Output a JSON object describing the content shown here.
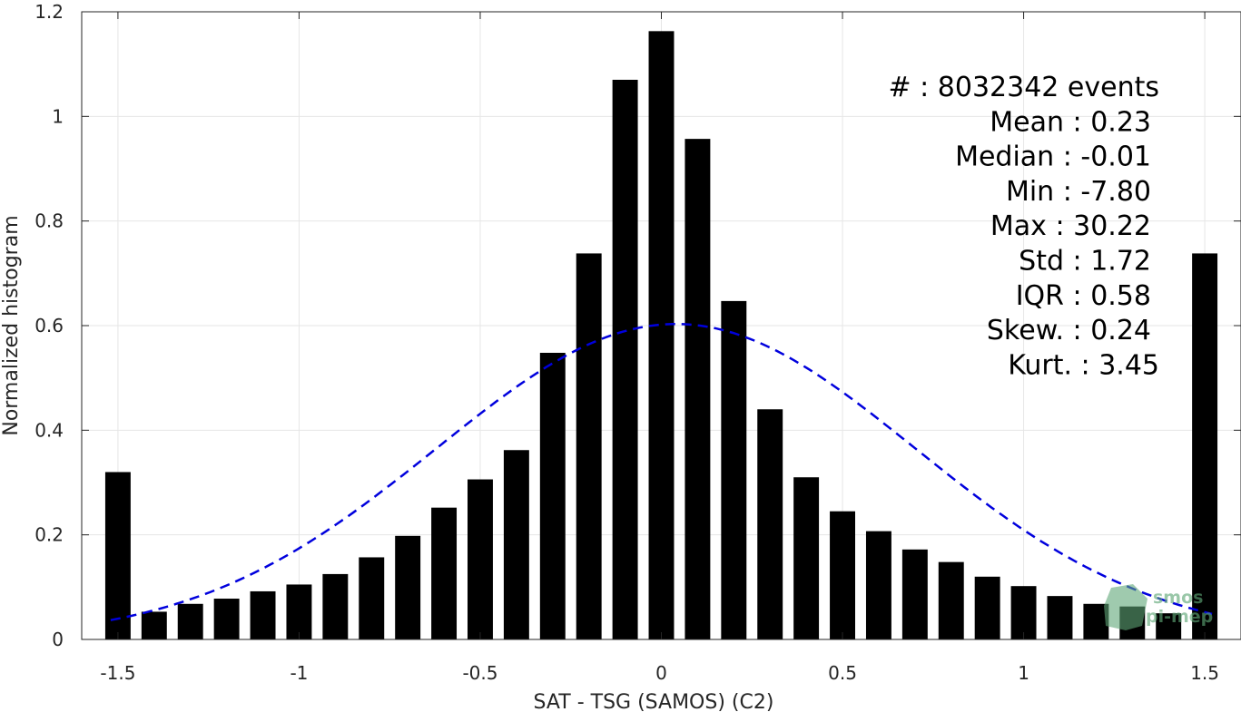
{
  "chart_data": {
    "type": "bar",
    "xlabel": "SAT - TSG (SAMOS) (C2)",
    "ylabel": "Normalized histogram",
    "xlim": [
      -1.6,
      1.6
    ],
    "ylim": [
      0,
      1.2
    ],
    "x_ticks": [
      -1.5,
      -1,
      -0.5,
      0,
      0.5,
      1,
      1.5
    ],
    "x_tick_labels": [
      "-1.5",
      "-1",
      "-0.5",
      "0",
      "0.5",
      "1",
      "1.5"
    ],
    "y_ticks": [
      0,
      0.2,
      0.4,
      0.6,
      0.8,
      1,
      1.2
    ],
    "y_tick_labels": [
      "0",
      "0.2",
      "0.4",
      "0.6",
      "0.8",
      "1",
      "1.2"
    ],
    "grid": true,
    "bar_color": "#000000",
    "bar_width": 0.07,
    "x": [
      -1.5,
      -1.4,
      -1.3,
      -1.2,
      -1.1,
      -1.0,
      -0.9,
      -0.8,
      -0.7,
      -0.6,
      -0.5,
      -0.4,
      -0.3,
      -0.2,
      -0.1,
      0.0,
      0.1,
      0.2,
      0.3,
      0.4,
      0.5,
      0.6,
      0.7,
      0.8,
      0.9,
      1.0,
      1.1,
      1.2,
      1.3,
      1.4,
      1.5
    ],
    "values": [
      0.32,
      0.053,
      0.068,
      0.078,
      0.092,
      0.105,
      0.125,
      0.157,
      0.198,
      0.252,
      0.306,
      0.362,
      0.548,
      0.738,
      1.07,
      1.163,
      0.957,
      0.647,
      0.44,
      0.31,
      0.245,
      0.207,
      0.172,
      0.148,
      0.12,
      0.102,
      0.083,
      0.068,
      0.063,
      0.05,
      0.738
    ],
    "fit_curve": {
      "style": "dashed",
      "color": "#0000dd",
      "mean": 0.04,
      "peak": 0.603,
      "sigma": 0.66,
      "x_start": -1.52,
      "x_end": 1.52
    },
    "stats": [
      {
        "label": "#",
        "sep": " : ",
        "value": "8032342 events"
      },
      {
        "label": "Mean",
        "sep": " : ",
        "value": "0.23"
      },
      {
        "label": "Median",
        "sep": " : ",
        "value": "-0.01"
      },
      {
        "label": "Min",
        "sep": " : ",
        "value": "-7.80"
      },
      {
        "label": "Max",
        "sep": " : ",
        "value": "30.22"
      },
      {
        "label": "Std",
        "sep": " : ",
        "value": "1.72"
      },
      {
        "label": "IQR",
        "sep": " : ",
        "value": "0.58"
      },
      {
        "label": "Skew.",
        "sep": " : ",
        "value": "0.24"
      },
      {
        "label": "Kurt.",
        "sep": " : ",
        "value": "3.45"
      }
    ]
  },
  "watermark": {
    "line1": "smos",
    "line2": "pi-mep",
    "color": "#5fa777"
  }
}
